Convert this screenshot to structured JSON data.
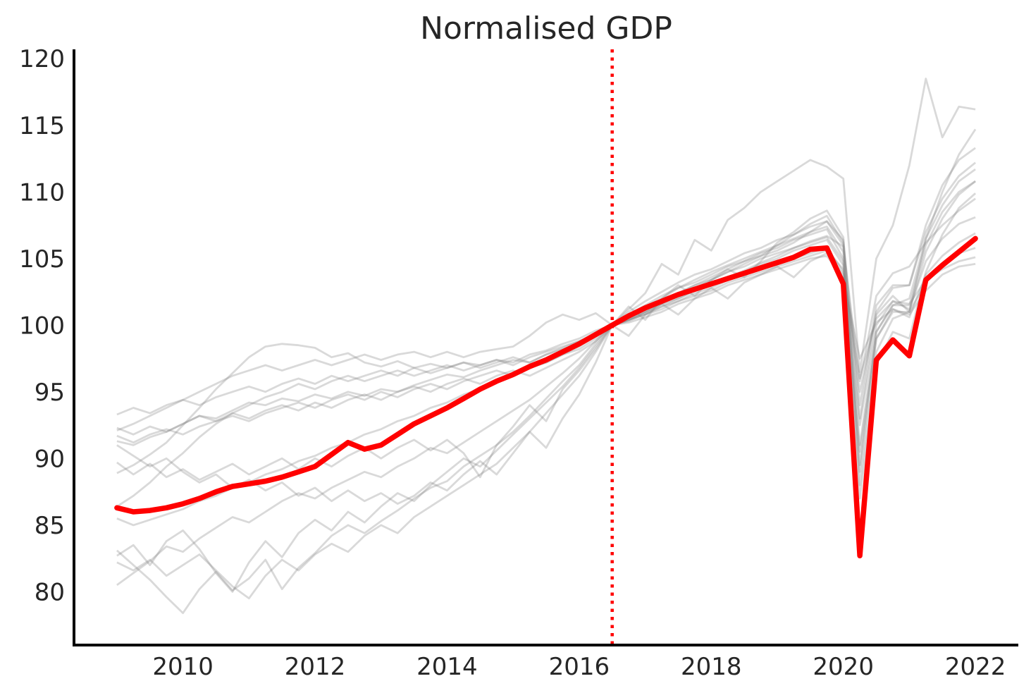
{
  "chart_data": {
    "type": "line",
    "title": "Normalised GDP",
    "xlabel": "",
    "ylabel": "",
    "x_start": 2009.0,
    "x_step": 0.25,
    "x_axis": {
      "ticks": [
        2010,
        2012,
        2014,
        2016,
        2018,
        2020,
        2022
      ],
      "range": [
        2008.35,
        2022.65
      ]
    },
    "y_axis": {
      "ticks": [
        80,
        85,
        90,
        95,
        100,
        105,
        110,
        115,
        120
      ],
      "range": [
        76.0,
        120.7
      ]
    },
    "grid": false,
    "legend": "none",
    "normalisation_line": {
      "x": 2016.5,
      "color": "#ff0000",
      "style": "dotted"
    },
    "colors": {
      "main": "#ff0000",
      "background": "#808080",
      "background_opacity": 0.3,
      "axis": "#000000",
      "text": "#262626"
    },
    "main_series": {
      "name": "highlighted-series",
      "values": [
        86.3,
        86.0,
        86.1,
        86.3,
        86.6,
        87.0,
        87.5,
        87.9,
        88.1,
        88.3,
        88.6,
        89.0,
        89.4,
        90.3,
        91.2,
        90.7,
        91.0,
        91.8,
        92.6,
        93.2,
        93.8,
        94.5,
        95.2,
        95.8,
        96.3,
        96.9,
        97.4,
        98.0,
        98.6,
        99.3,
        100.0,
        100.7,
        101.3,
        101.8,
        102.3,
        102.7,
        103.1,
        103.5,
        103.9,
        104.3,
        104.7,
        105.1,
        105.7,
        105.8,
        103.1,
        82.7,
        97.4,
        98.9,
        97.7,
        103.4,
        104.5,
        105.5,
        106.5
      ]
    },
    "background_series": [
      {
        "name": "background-1",
        "values": [
          88.9,
          89.5,
          90.3,
          91.2,
          92.5,
          93.8,
          95.2,
          96.4,
          97.6,
          98.4,
          98.6,
          98.5,
          98.3,
          97.6,
          97.9,
          97.2,
          96.9,
          97.3,
          96.8,
          97.1,
          96.8,
          97.2,
          97.0,
          97.4,
          97.2,
          97.8,
          98.1,
          98.6,
          99.0,
          99.6,
          100.0,
          100.3,
          100.9,
          101.4,
          102.0,
          102.6,
          103.0,
          103.6,
          104.1,
          104.7,
          105.2,
          105.8,
          106.3,
          106.7,
          105.9,
          95.8,
          102.2,
          103.9,
          104.4,
          106.2,
          107.5,
          108.6,
          109.5
        ]
      },
      {
        "name": "background-2",
        "values": [
          91.3,
          91.0,
          91.6,
          92.0,
          92.6,
          93.2,
          93.0,
          93.6,
          94.2,
          94.0,
          94.5,
          94.3,
          94.8,
          94.5,
          95.0,
          94.7,
          95.2,
          95.0,
          95.5,
          95.9,
          96.3,
          96.1,
          96.6,
          97.0,
          97.4,
          97.2,
          97.8,
          98.3,
          98.8,
          99.3,
          100.0,
          101.2,
          102.4,
          104.6,
          103.8,
          106.4,
          105.6,
          107.9,
          108.8,
          110.0,
          110.8,
          111.6,
          112.4,
          111.9,
          111.0,
          96.5,
          105.0,
          107.5,
          112.0,
          118.5,
          114.1,
          116.4,
          116.2
        ]
      },
      {
        "name": "background-3",
        "values": [
          83.1,
          82.0,
          80.9,
          79.6,
          78.4,
          80.2,
          81.5,
          80.1,
          81.0,
          82.4,
          80.2,
          81.8,
          82.9,
          84.2,
          85.0,
          84.4,
          85.3,
          86.1,
          87.0,
          87.8,
          88.3,
          89.4,
          90.2,
          91.0,
          92.0,
          93.2,
          94.5,
          95.8,
          97.0,
          98.6,
          100.0,
          101.0,
          101.8,
          102.5,
          103.2,
          103.8,
          104.2,
          104.8,
          105.4,
          105.8,
          106.4,
          106.8,
          107.4,
          107.8,
          106.0,
          88.0,
          98.0,
          100.5,
          101.0,
          105.5,
          108.0,
          109.8,
          110.8
        ]
      },
      {
        "name": "background-4",
        "values": [
          80.5,
          81.4,
          82.3,
          83.4,
          83.0,
          84.0,
          84.8,
          85.6,
          85.2,
          86.0,
          86.8,
          87.4,
          87.0,
          87.8,
          88.4,
          89.0,
          88.6,
          89.4,
          90.0,
          90.8,
          90.4,
          91.2,
          92.0,
          92.8,
          93.6,
          94.4,
          95.4,
          96.4,
          97.5,
          98.8,
          100.0,
          100.8,
          101.5,
          102.2,
          102.8,
          103.4,
          104.0,
          104.5,
          105.0,
          105.5,
          106.0,
          106.5,
          107.0,
          107.4,
          105.5,
          91.0,
          99.5,
          101.5,
          102.0,
          106.5,
          109.0,
          110.8,
          111.7
        ]
      },
      {
        "name": "background-5",
        "values": [
          82.7,
          83.5,
          82.0,
          83.8,
          84.6,
          83.2,
          81.4,
          80.0,
          82.2,
          83.8,
          82.6,
          84.4,
          85.4,
          84.6,
          86.0,
          85.2,
          86.4,
          87.4,
          86.8,
          88.0,
          89.0,
          90.0,
          89.4,
          90.6,
          91.8,
          93.0,
          94.2,
          95.4,
          96.8,
          98.4,
          100.0,
          100.6,
          101.4,
          102.0,
          102.8,
          103.2,
          103.8,
          104.4,
          104.8,
          105.4,
          105.8,
          106.4,
          106.8,
          107.2,
          105.0,
          87.0,
          97.0,
          99.5,
          99.0,
          104.0,
          106.8,
          108.8,
          109.9
        ]
      },
      {
        "name": "background-6",
        "values": [
          85.5,
          85.0,
          85.4,
          85.8,
          86.2,
          86.8,
          87.2,
          87.8,
          88.2,
          88.8,
          89.2,
          89.8,
          90.2,
          90.8,
          91.2,
          91.8,
          92.2,
          92.8,
          93.2,
          93.8,
          94.2,
          94.8,
          95.2,
          95.8,
          96.2,
          96.8,
          97.2,
          97.8,
          98.4,
          99.2,
          100.0,
          100.5,
          101.0,
          101.6,
          102.0,
          102.6,
          103.0,
          103.6,
          104.0,
          104.6,
          105.0,
          105.6,
          106.0,
          106.4,
          104.5,
          92.5,
          100.0,
          101.8,
          101.2,
          104.8,
          106.5,
          107.6,
          108.1
        ]
      },
      {
        "name": "background-7",
        "values": [
          86.4,
          87.2,
          88.2,
          89.4,
          90.4,
          91.6,
          92.6,
          93.4,
          94.0,
          94.6,
          95.0,
          95.6,
          95.2,
          95.8,
          96.2,
          95.8,
          96.2,
          96.6,
          96.2,
          96.6,
          97.0,
          96.6,
          97.0,
          97.4,
          97.0,
          97.6,
          98.0,
          98.4,
          98.8,
          99.4,
          100.0,
          100.4,
          101.0,
          101.6,
          102.2,
          102.8,
          103.4,
          104.0,
          104.6,
          105.2,
          105.6,
          106.2,
          107.0,
          107.8,
          106.4,
          94.0,
          101.5,
          103.0,
          103.0,
          107.0,
          109.5,
          111.2,
          112.2
        ]
      },
      {
        "name": "background-8",
        "values": [
          93.3,
          93.8,
          93.4,
          94.0,
          94.4,
          94.0,
          94.6,
          95.0,
          95.4,
          95.0,
          95.6,
          96.0,
          95.6,
          96.2,
          95.8,
          96.2,
          96.6,
          96.2,
          96.8,
          96.4,
          96.8,
          97.2,
          96.8,
          97.2,
          97.6,
          97.2,
          97.8,
          98.2,
          98.6,
          99.2,
          100.0,
          100.4,
          100.8,
          101.4,
          101.8,
          102.4,
          102.8,
          103.4,
          103.8,
          104.2,
          104.6,
          105.0,
          105.4,
          105.8,
          104.0,
          96.0,
          100.5,
          101.8,
          101.6,
          103.4,
          104.2,
          104.8,
          105.1
        ]
      },
      {
        "name": "background-9",
        "values": [
          92.3,
          91.8,
          92.4,
          92.0,
          92.6,
          93.2,
          92.8,
          93.4,
          93.0,
          93.6,
          94.0,
          93.6,
          94.2,
          93.8,
          94.4,
          94.8,
          94.4,
          95.0,
          95.4,
          95.0,
          95.6,
          96.0,
          95.6,
          96.2,
          96.6,
          96.2,
          96.8,
          97.4,
          98.0,
          98.8,
          100.0,
          100.6,
          101.2,
          101.8,
          102.4,
          103.0,
          103.6,
          104.2,
          104.8,
          105.2,
          106.0,
          106.8,
          107.6,
          108.2,
          106.2,
          93.0,
          101.0,
          102.8,
          103.0,
          107.5,
          110.5,
          112.4,
          113.3
        ]
      },
      {
        "name": "background-10",
        "values": [
          92.1,
          92.6,
          93.2,
          93.8,
          94.4,
          95.0,
          95.6,
          96.2,
          96.6,
          97.0,
          96.6,
          97.0,
          97.4,
          97.0,
          97.4,
          97.8,
          97.4,
          97.8,
          98.0,
          97.6,
          98.0,
          97.6,
          98.0,
          98.2,
          98.4,
          99.2,
          100.2,
          100.8,
          100.4,
          100.9,
          100.0,
          100.2,
          100.6,
          101.0,
          101.6,
          102.0,
          102.4,
          103.0,
          103.4,
          103.8,
          104.2,
          104.6,
          105.0,
          105.2,
          103.5,
          97.5,
          100.2,
          101.2,
          100.8,
          102.6,
          103.8,
          104.4,
          104.6
        ]
      },
      {
        "name": "background-11",
        "values": [
          91.7,
          91.2,
          91.8,
          92.2,
          91.8,
          92.4,
          92.8,
          93.2,
          92.8,
          93.4,
          93.8,
          94.2,
          93.8,
          94.4,
          94.8,
          94.4,
          95.0,
          94.6,
          95.2,
          95.6,
          95.2,
          95.8,
          96.2,
          96.6,
          96.2,
          96.8,
          97.2,
          97.8,
          98.2,
          99.0,
          100.0,
          100.4,
          100.8,
          101.2,
          101.8,
          102.2,
          102.6,
          103.2,
          103.6,
          104.0,
          104.4,
          104.8,
          105.2,
          105.6,
          104.2,
          95.0,
          100.8,
          102.2,
          101.0,
          103.2,
          104.6,
          105.4,
          105.8
        ]
      },
      {
        "name": "background-12",
        "values": [
          89.7,
          88.8,
          89.6,
          88.6,
          89.2,
          88.4,
          89.0,
          89.6,
          88.8,
          89.4,
          90.0,
          89.2,
          90.0,
          89.4,
          90.2,
          90.8,
          90.0,
          90.8,
          91.4,
          90.6,
          91.4,
          90.4,
          88.6,
          91.0,
          92.4,
          94.0,
          92.8,
          95.2,
          96.6,
          98.2,
          100.0,
          101.4,
          100.4,
          102.0,
          103.0,
          102.2,
          103.4,
          104.2,
          103.6,
          104.8,
          106.2,
          107.0,
          108.0,
          108.6,
          106.6,
          89.5,
          99.5,
          101.5,
          101.5,
          106.0,
          108.5,
          110.0,
          110.8
        ]
      },
      {
        "name": "background-13",
        "values": [
          91.0,
          90.2,
          89.4,
          90.0,
          89.0,
          88.2,
          88.8,
          87.8,
          88.4,
          87.6,
          88.2,
          87.2,
          87.8,
          86.8,
          87.6,
          86.8,
          87.4,
          86.6,
          87.2,
          88.2,
          87.6,
          88.8,
          89.8,
          88.8,
          90.4,
          92.0,
          90.8,
          93.0,
          94.8,
          97.2,
          100.0,
          99.2,
          100.8,
          101.6,
          100.8,
          102.0,
          102.8,
          102.0,
          103.2,
          103.8,
          104.4,
          103.6,
          104.8,
          105.4,
          103.8,
          90.5,
          99.0,
          101.2,
          100.6,
          103.8,
          105.2,
          106.2,
          106.9
        ]
      },
      {
        "name": "background-14",
        "values": [
          82.2,
          81.6,
          82.4,
          81.2,
          82.0,
          82.8,
          81.6,
          80.4,
          79.5,
          81.2,
          82.4,
          81.6,
          82.8,
          83.6,
          83.0,
          84.2,
          85.0,
          84.4,
          85.6,
          86.4,
          87.2,
          88.0,
          88.8,
          89.6,
          90.8,
          92.0,
          93.4,
          94.8,
          96.2,
          98.0,
          100.0,
          100.4,
          101.0,
          101.8,
          102.4,
          103.0,
          103.4,
          104.0,
          104.4,
          105.0,
          105.4,
          105.8,
          106.2,
          106.6,
          104.8,
          89.0,
          99.0,
          101.0,
          101.0,
          106.5,
          110.0,
          112.8,
          114.7
        ]
      }
    ]
  }
}
